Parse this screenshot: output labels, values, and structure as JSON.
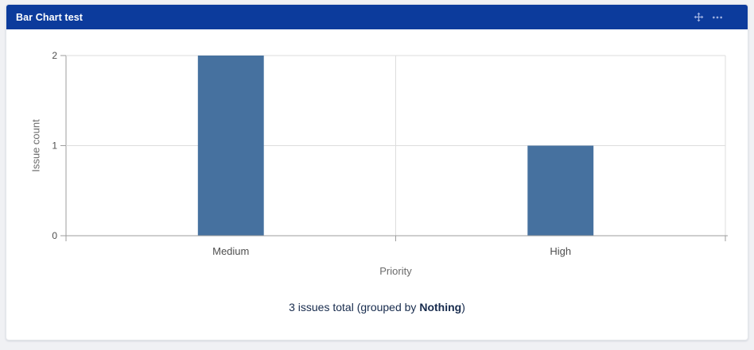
{
  "header": {
    "title": "Bar Chart test",
    "icons": [
      {
        "name": "move-gadget-icon"
      },
      {
        "name": "more-options-icon"
      }
    ]
  },
  "chart_data": {
    "type": "bar",
    "title": "",
    "categories": [
      "Medium",
      "High"
    ],
    "values": [
      2,
      1
    ],
    "xlabel": "Priority",
    "ylabel": "Issue count",
    "ylim": [
      0,
      2
    ],
    "yticks": [
      0,
      1,
      2
    ],
    "grid": true,
    "legend": false,
    "bar_color": "#46719F"
  },
  "summary": {
    "text_before": "3 issues total (grouped by ",
    "group_label": "Nothing",
    "text_after": ")"
  },
  "theme": {
    "page_bg": "#F0F1F4",
    "card_bg": "#FFFFFF",
    "card_border": "#E4E6EA",
    "header_bg": "#0C3B9C",
    "header_fg": "#FFFFFF",
    "header_icon": "#9FB1E1",
    "grid_color": "#DDDDDD",
    "axis_color": "#9E9E9E",
    "tick_label_color": "#4F4F4F",
    "axis_title_color": "#6B6B6B",
    "summary_color": "#172B4D"
  }
}
